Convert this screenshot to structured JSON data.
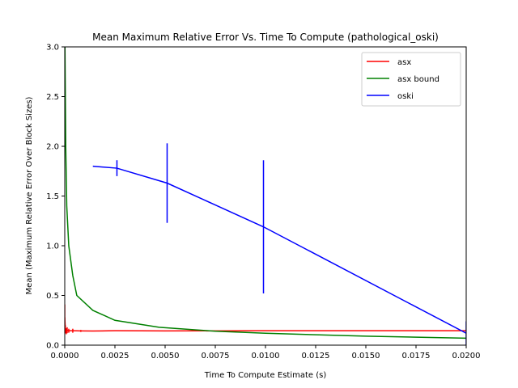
{
  "chart_data": {
    "type": "line",
    "title": "Mean Maximum Relative Error Vs. Time To Compute (pathological_oski)",
    "xlabel": "Time To Compute Estimate (s)",
    "ylabel": "Mean (Maximum Relative Error Over Block Sizes)",
    "xlim": [
      0.0,
      0.02
    ],
    "ylim": [
      0.0,
      3.0
    ],
    "xticks": [
      "0.0000",
      "0.0025",
      "0.0050",
      "0.0075",
      "0.0100",
      "0.0125",
      "0.0150",
      "0.0175",
      "0.0200"
    ],
    "yticks": [
      "0.0",
      "0.5",
      "1.0",
      "1.5",
      "2.0",
      "2.5",
      "3.0"
    ],
    "grid": false,
    "legend_position": "top-right",
    "series": [
      {
        "name": "asx",
        "color": "#ff0000",
        "x": [
          0.0,
          3e-05,
          7e-05,
          0.00012,
          0.0002,
          0.0004,
          0.0008,
          0.0014,
          0.0025,
          0.005,
          0.01,
          0.015,
          0.02
        ],
        "y": [
          0.28,
          0.16,
          0.14,
          0.15,
          0.145,
          0.145,
          0.143,
          0.142,
          0.145,
          0.143,
          0.145,
          0.145,
          0.145
        ],
        "err": [
          0.13,
          0.04,
          0.03,
          0.03,
          0.02,
          0.02,
          0.01,
          0.0,
          0.0,
          0.0,
          0.0,
          0.0,
          0.0
        ]
      },
      {
        "name": "asx bound",
        "color": "#008000",
        "x": [
          1e-05,
          5e-05,
          0.0001,
          0.0002,
          0.0004,
          0.0006,
          0.0014,
          0.0025,
          0.0047,
          0.0075,
          0.01,
          0.015,
          0.02
        ],
        "y": [
          3.0,
          2.0,
          1.4,
          1.0,
          0.7,
          0.5,
          0.35,
          0.25,
          0.18,
          0.14,
          0.12,
          0.09,
          0.07
        ],
        "err": []
      },
      {
        "name": "oski",
        "color": "#0000ff",
        "x": [
          0.0014,
          0.0026,
          0.0051,
          0.0099,
          0.02
        ],
        "y": [
          1.8,
          1.78,
          1.63,
          1.19,
          0.12
        ],
        "err": [
          0.0,
          0.08,
          0.4,
          0.67,
          0.12
        ]
      }
    ]
  }
}
